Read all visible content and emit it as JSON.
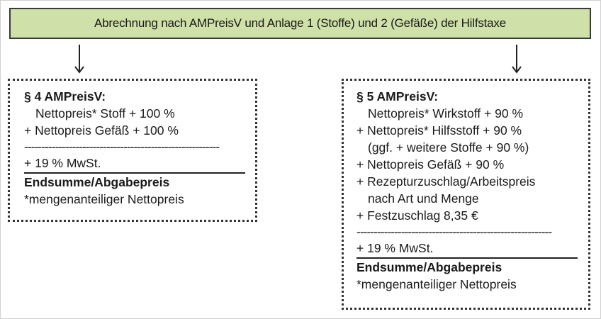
{
  "header": {
    "title": "Abrechnung nach AMPreisV und Anlage 1 (Stoffe) und 2 (Gefäße) der Hilfstaxe"
  },
  "left": {
    "title": "§ 4 AMPreisV:",
    "lines": [
      "Nettopreis* Stoff + 100 %",
      "+ Nettopreis Gefäß + 100 %"
    ],
    "dashes": "---------------------------------------------------------",
    "vat": "+ 19 % MwSt.",
    "total": "Endsumme/Abgabepreis",
    "footnote": "*mengenanteiliger Nettopreis"
  },
  "right": {
    "title": "§ 5 AMPreisV:",
    "lines": [
      "Nettopreis* Wirkstoff + 90 %",
      "+ Nettopreis* Hilfsstoff + 90 %",
      "(ggf. + weitere Stoffe + 90 %)",
      "+ Nettopreis Gefäß + 90 %",
      "+ Rezepturzuschlag/Arbeitspreis",
      "nach Art und Menge",
      "+ Festzuschlag 8,35 €"
    ],
    "dashes": "---------------------------------------------------------",
    "vat": "+ 19 % MwSt.",
    "total": "Endsumme/Abgabepreis",
    "footnote": "*mengenanteiliger Nettopreis"
  },
  "colors": {
    "header_bg": "#cfe0a8",
    "border": "#333333"
  }
}
